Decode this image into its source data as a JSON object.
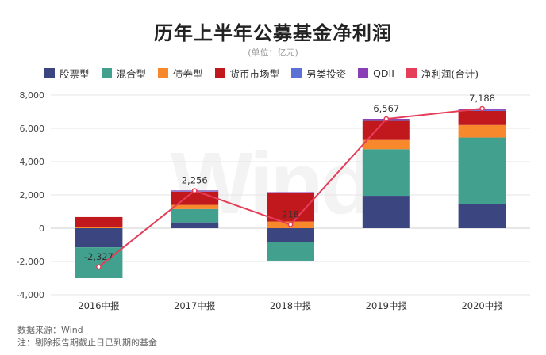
{
  "title": "历年上半年公募基金净利润",
  "subtitle": "(单位：亿元)",
  "source": "数据来源：Wind",
  "note": "注：剔除报告期截止日已到期的基金",
  "watermark": "Wind",
  "chart_data": {
    "type": "bar",
    "stacked": true,
    "categories": [
      "2016中报",
      "2017中报",
      "2018中报",
      "2019中报",
      "2020中报"
    ],
    "ylim": [
      -4000,
      8000
    ],
    "yticks": [
      -4000,
      -2000,
      0,
      2000,
      4000,
      6000,
      8000
    ],
    "ytick_labels": [
      "-4,000",
      "-2,000",
      "0",
      "2,000",
      "4,000",
      "6,000",
      "8,000"
    ],
    "grid": true,
    "legend_position": "top",
    "series": [
      {
        "name": "股票型",
        "color": "#3b4680",
        "values": [
          -1150,
          350,
          -850,
          1950,
          1450
        ]
      },
      {
        "name": "混合型",
        "color": "#41a08e",
        "values": [
          -1850,
          800,
          -1100,
          2800,
          4000
        ]
      },
      {
        "name": "债券型",
        "color": "#f7882b",
        "values": [
          50,
          250,
          400,
          550,
          750
        ]
      },
      {
        "name": "货币市场型",
        "color": "#c0181d",
        "values": [
          620,
          800,
          1750,
          1150,
          850
        ]
      },
      {
        "name": "另类投资",
        "color": "#5d70d6",
        "values": [
          0,
          30,
          0,
          60,
          50
        ]
      },
      {
        "name": "QDII",
        "color": "#8b3fb7",
        "values": [
          0,
          40,
          20,
          60,
          80
        ]
      }
    ],
    "line": {
      "name": "净利润(合计)",
      "color": "#e53e5a",
      "values": [
        -2327,
        2256,
        218,
        6567,
        7188
      ],
      "labels": [
        "-2,327",
        "2,256",
        "218",
        "6,567",
        "7,188"
      ]
    }
  }
}
